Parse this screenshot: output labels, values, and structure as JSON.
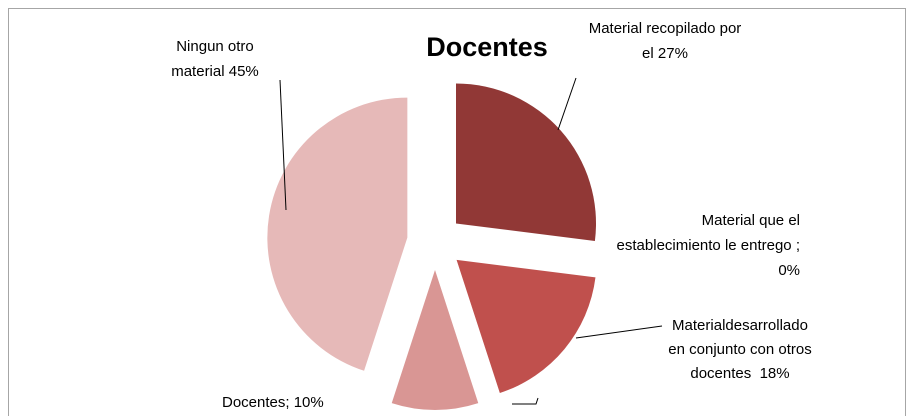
{
  "chart_data": {
    "type": "pie",
    "title": "Docentes",
    "categories": [
      "Material recopilado por el",
      "Material que el establecimiento le entrego ;",
      "Materialdesarrollado en conjunto con otros docentes",
      "Docentes;",
      "Ningun otro material"
    ],
    "values": [
      27,
      0,
      18,
      10,
      45
    ],
    "value_labels": [
      "27%",
      "0%",
      "18%",
      "10%",
      "45%"
    ],
    "colors": [
      "#913836",
      "#b84a48",
      "#c0504d",
      "#d99694",
      "#e6b9b8"
    ]
  }
}
